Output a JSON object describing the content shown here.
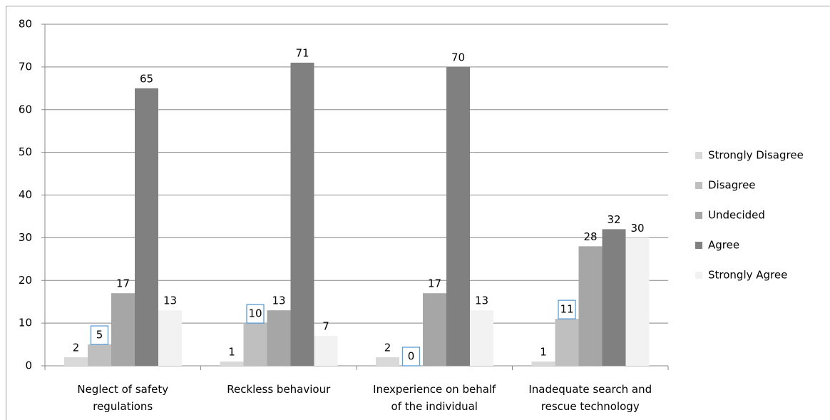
{
  "chart_data": {
    "type": "bar",
    "categories": [
      "Neglect of safety regulations",
      "Reckless behaviour",
      "Inexperience on behalf of the individual",
      "Inadequate search and rescue technology"
    ],
    "series": [
      {
        "name": "Strongly Disagree",
        "color": "#d9d9d9",
        "values": [
          2,
          1,
          2,
          1
        ]
      },
      {
        "name": "Disagree",
        "color": "#bfbfbf",
        "values": [
          5,
          10,
          0,
          11
        ],
        "label_box": "#5b9bd5"
      },
      {
        "name": "Undecided",
        "color": "#a6a6a6",
        "values": [
          17,
          13,
          17,
          28
        ]
      },
      {
        "name": "Agree",
        "color": "#808080",
        "values": [
          65,
          71,
          70,
          32
        ]
      },
      {
        "name": "Strongly Agree",
        "color": "#f2f2f2",
        "values": [
          13,
          7,
          13,
          30
        ]
      }
    ],
    "ylim": [
      0,
      80
    ],
    "yticks": [
      0,
      10,
      20,
      30,
      40,
      50,
      60,
      70,
      80
    ],
    "grid": true,
    "legend": "right"
  }
}
